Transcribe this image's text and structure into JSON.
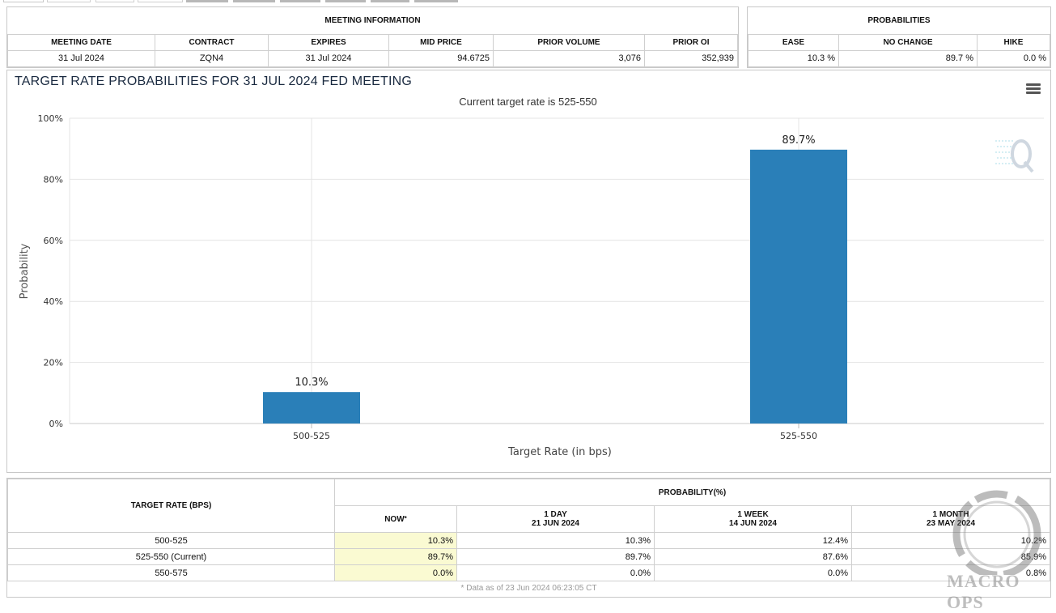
{
  "meeting_info": {
    "title": "MEETING INFORMATION",
    "columns": [
      "MEETING DATE",
      "CONTRACT",
      "EXPIRES",
      "MID PRICE",
      "PRIOR VOLUME",
      "PRIOR OI"
    ],
    "values": [
      "31 Jul 2024",
      "ZQN4",
      "31 Jul 2024",
      "94.6725",
      "3,076",
      "352,939"
    ]
  },
  "probabilities": {
    "title": "PROBABILITIES",
    "columns": [
      "EASE",
      "NO CHANGE",
      "HIKE"
    ],
    "values": [
      "10.3 %",
      "89.7 %",
      "0.0 %"
    ]
  },
  "chart_header": {
    "title": "TARGET RATE PROBABILITIES FOR 31 JUL 2024 FED MEETING",
    "subtitle": "Current target rate is 525-550"
  },
  "chart_data": {
    "type": "bar",
    "title": "TARGET RATE PROBABILITIES FOR 31 JUL 2024 FED MEETING",
    "subtitle": "Current target rate is 525-550",
    "categories": [
      "500-525",
      "525-550"
    ],
    "values": [
      10.3,
      89.7
    ],
    "data_labels": [
      "10.3%",
      "89.7%"
    ],
    "xlabel": "Target Rate (in bps)",
    "ylabel": "Probability",
    "ylim": [
      0,
      100
    ],
    "yticks": [
      0,
      20,
      40,
      60,
      80,
      100
    ],
    "ytick_labels": [
      "0%",
      "20%",
      "40%",
      "60%",
      "80%",
      "100%"
    ],
    "bar_color": "#2a7fb8",
    "grid": true
  },
  "bottom_table": {
    "target_rate_header": "TARGET RATE (BPS)",
    "probability_header": "PROBABILITY(%)",
    "now_label": "NOW",
    "now_mark": "*",
    "periods": [
      {
        "label": "1 DAY",
        "date": "21 JUN 2024"
      },
      {
        "label": "1 WEEK",
        "date": "14 JUN 2024"
      },
      {
        "label": "1 MONTH",
        "date": "23 MAY 2024"
      }
    ],
    "rows": [
      {
        "rate": "500-525",
        "now": "10.3%",
        "day": "10.3%",
        "week": "12.4%",
        "month": "10.2%"
      },
      {
        "rate": "525-550 (Current)",
        "now": "89.7%",
        "day": "89.7%",
        "week": "87.6%",
        "month": "85.9%"
      },
      {
        "rate": "550-575",
        "now": "0.0%",
        "day": "0.0%",
        "week": "0.0%",
        "month": "0.8%"
      }
    ],
    "footnote": "* Data as of 23 Jun 2024 06:23:05 CT"
  },
  "watermark": {
    "text": "MACRO OPS"
  }
}
